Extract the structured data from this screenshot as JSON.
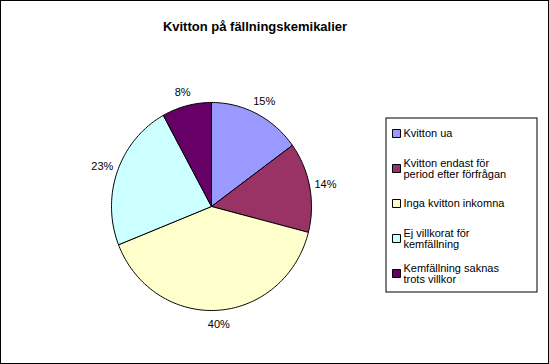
{
  "chart_data": {
    "type": "pie",
    "title": "Kvitton på fällningskemikalier",
    "categories": [
      "Kvitton ua",
      "Kvitton endast för period efter förfrågan",
      "Inga kvitton inkomna",
      "Ej villkorat för kemfällning",
      "Kemfällning saknas trots villkor"
    ],
    "values": [
      15,
      14,
      40,
      23,
      8
    ],
    "value_labels": [
      "15%",
      "14%",
      "40%",
      "23%",
      "8%"
    ],
    "colors": [
      "#9999ff",
      "#993366",
      "#ffffcc",
      "#ccffff",
      "#660066"
    ],
    "data_labels": true,
    "legend": "right"
  }
}
